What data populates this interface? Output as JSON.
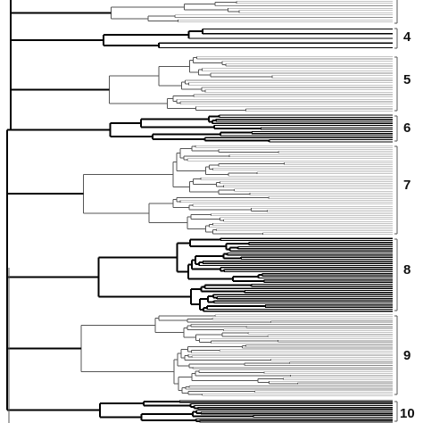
{
  "figure": {
    "background": "#ffffff",
    "line_color_bold": "#000000",
    "line_color_thin": "#555555",
    "leaf_line_color": "#888888"
  },
  "clusters": [
    {
      "id": "4",
      "label": "4",
      "leaves": 5,
      "style": "bold"
    },
    {
      "id": "5",
      "label": "5",
      "leaves": 24,
      "style": "thin"
    },
    {
      "id": "6",
      "label": "6",
      "leaves": 14,
      "style": "bold"
    },
    {
      "id": "7",
      "label": "7",
      "leaves": 48,
      "style": "thin"
    },
    {
      "id": "8",
      "label": "8",
      "leaves": 36,
      "style": "bold"
    },
    {
      "id": "9",
      "label": "9",
      "leaves": 52,
      "style": "thin"
    },
    {
      "id": "10",
      "label": "10",
      "leaves": 14,
      "style": "bold"
    }
  ]
}
